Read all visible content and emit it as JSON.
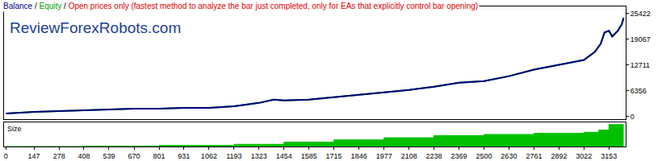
{
  "chart_data": [
    {
      "type": "line",
      "title": "Balance / Equity / Open prices only (fastest method to analyze the bar just completed, only for EAs that explicitly control bar opening)",
      "annotations": [
        "ReviewForexRobots.com"
      ],
      "x": [
        0,
        147,
        278,
        408,
        539,
        670,
        801,
        931,
        1062,
        1193,
        1323,
        1400,
        1454,
        1585,
        1715,
        1846,
        1977,
        2108,
        2238,
        2369,
        2500,
        2630,
        2761,
        2892,
        3022,
        3080,
        3110,
        3130,
        3153,
        3170,
        3200,
        3220,
        3230
      ],
      "series": [
        {
          "name": "Balance",
          "color": "#000080",
          "values": [
            800,
            1200,
            1400,
            1600,
            1800,
            2000,
            2000,
            2200,
            2200,
            2600,
            3400,
            4200,
            4000,
            4200,
            4800,
            5400,
            6000,
            6600,
            7400,
            8400,
            8800,
            10000,
            11600,
            12800,
            14000,
            16000,
            18000,
            20800,
            21200,
            19800,
            21200,
            22800,
            24400
          ]
        },
        {
          "name": "Equity",
          "color": "#00a000",
          "values": [
            800,
            1200,
            1400,
            1600,
            1800,
            2000,
            2000,
            2200,
            2200,
            2600,
            3400,
            4200,
            4000,
            4200,
            4800,
            5400,
            6000,
            6600,
            7400,
            8400,
            8800,
            10000,
            11600,
            12800,
            14000,
            16000,
            18000,
            20800,
            21200,
            19800,
            21200,
            22800,
            24400
          ]
        }
      ],
      "xlim": [
        -10,
        3240
      ],
      "ylim": [
        -600,
        27200
      ],
      "yticks": [
        0,
        6356,
        12711,
        19067,
        25422
      ],
      "grid": false,
      "tick_labels": "y"
    },
    {
      "type": "area",
      "title": "Size",
      "x": [
        0,
        408,
        801,
        1193,
        1454,
        1715,
        1977,
        2238,
        2500,
        2761,
        3022,
        3100,
        3153,
        3230
      ],
      "values": [
        0,
        2,
        5,
        10,
        20,
        30,
        40,
        50,
        55,
        60,
        65,
        75,
        100,
        100
      ],
      "color": "#00c000",
      "xlim": [
        -10,
        3240
      ],
      "ylim": [
        0,
        110
      ],
      "xticks": [
        0,
        147,
        278,
        408,
        539,
        670,
        801,
        931,
        1062,
        1193,
        1323,
        1454,
        1585,
        1715,
        1846,
        1977,
        2108,
        2238,
        2369,
        2500,
        2630,
        2761,
        2892,
        3022,
        3153
      ],
      "grid": false,
      "tick_labels": "x"
    }
  ]
}
